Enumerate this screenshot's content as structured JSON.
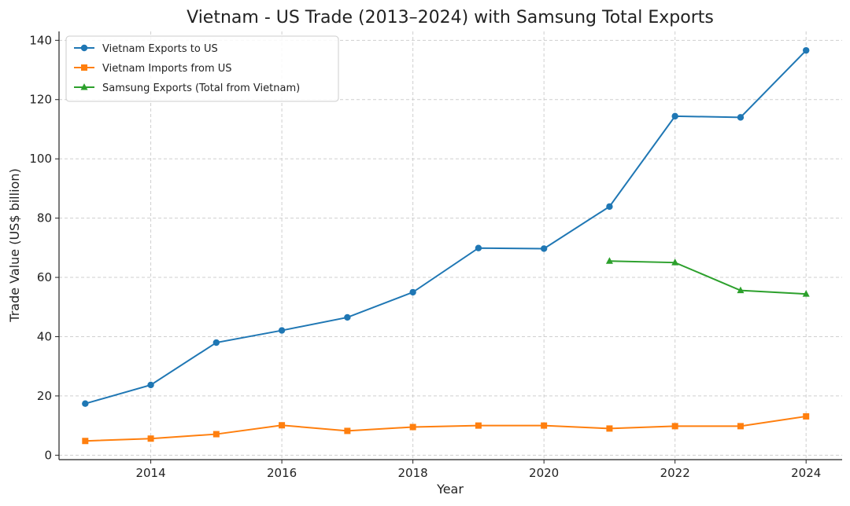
{
  "chart_data": {
    "type": "line",
    "title": "Vietnam - US Trade (2013–2024) with Samsung Total Exports",
    "xlabel": "Year",
    "ylabel": "Trade Value (US$ billion)",
    "xlim": [
      2012.6,
      2024.55
    ],
    "ylim": [
      -1.5,
      143
    ],
    "xticks": [
      2014,
      2016,
      2018,
      2020,
      2022,
      2024
    ],
    "yticks": [
      0,
      20,
      40,
      60,
      80,
      100,
      120,
      140
    ],
    "grid": true,
    "legend_position": "top-left",
    "series": [
      {
        "name": "Vietnam Exports to US",
        "color": "#1f77b4",
        "marker": "circle",
        "x": [
          2013,
          2014,
          2015,
          2016,
          2017,
          2018,
          2019,
          2020,
          2021,
          2022,
          2023,
          2024
        ],
        "values": [
          17.4,
          23.7,
          38.0,
          42.1,
          46.5,
          55.0,
          69.9,
          69.7,
          83.9,
          114.4,
          114.0,
          136.6
        ]
      },
      {
        "name": "Vietnam Imports from US",
        "color": "#ff7f0e",
        "marker": "square",
        "x": [
          2013,
          2014,
          2015,
          2016,
          2017,
          2018,
          2019,
          2020,
          2021,
          2022,
          2023,
          2024
        ],
        "values": [
          4.8,
          5.6,
          7.1,
          10.1,
          8.2,
          9.5,
          10.0,
          10.0,
          9.0,
          9.8,
          9.8,
          13.1
        ]
      },
      {
        "name": "Samsung Exports (Total from Vietnam)",
        "color": "#2ca02c",
        "marker": "triangle",
        "x": [
          2021,
          2022,
          2023,
          2024
        ],
        "values": [
          65.5,
          65.0,
          55.6,
          54.4
        ]
      }
    ]
  }
}
